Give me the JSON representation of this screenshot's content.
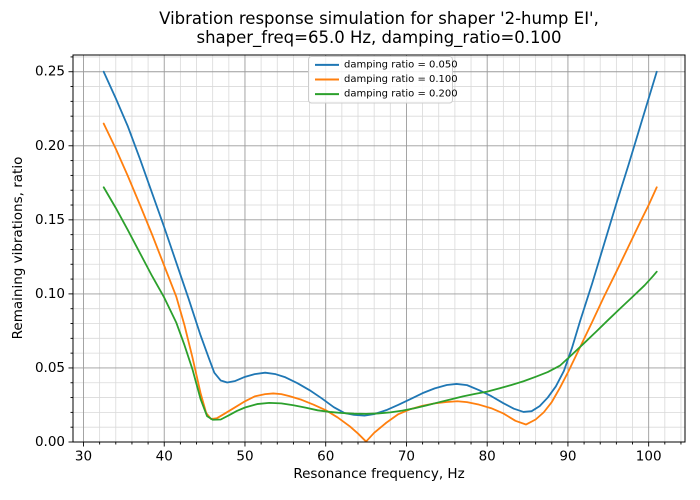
{
  "figure": {
    "title_line1": "Vibration response simulation for shaper '2-hump EI',",
    "title_line2": "shaper_freq=65.0 Hz, damping_ratio=0.100"
  },
  "chart_data": {
    "type": "line",
    "title": "Vibration response simulation for shaper '2-hump EI', shaper_freq=65.0 Hz, damping_ratio=0.100",
    "xlabel": "Resonance frequency, Hz",
    "ylabel": "Remaining vibrations, ratio",
    "xlim": [
      28.7,
      104.5
    ],
    "ylim": [
      0,
      0.2613
    ],
    "x_major_ticks": [
      30,
      40,
      50,
      60,
      70,
      80,
      90,
      100
    ],
    "x_tick_labels": [
      "30",
      "40",
      "50",
      "60",
      "70",
      "80",
      "90",
      "100"
    ],
    "x_minor_step": 2,
    "y_major_ticks": [
      0,
      0.05,
      0.1,
      0.15,
      0.2,
      0.25
    ],
    "y_tick_labels": [
      "0.00",
      "0.05",
      "0.10",
      "0.15",
      "0.20",
      "0.25"
    ],
    "y_minor_step": 0.01,
    "grid": true,
    "legend": {
      "position": "upper center",
      "border_color": "#cccccc",
      "background": "rgba(255,255,255,0.85)"
    },
    "style": {
      "major_grid_color": "#9b9b9b",
      "minor_grid_color": "#d9d9d9",
      "spine_color": "#000000"
    },
    "series": [
      {
        "name": "damping ratio = 0.050",
        "color": "#1f77b4",
        "points": [
          [
            32.5,
            0.25
          ],
          [
            34,
            0.232
          ],
          [
            35.5,
            0.213
          ],
          [
            37,
            0.191
          ],
          [
            38.5,
            0.168
          ],
          [
            40,
            0.145
          ],
          [
            41.5,
            0.121
          ],
          [
            43,
            0.097
          ],
          [
            44.5,
            0.072
          ],
          [
            45.5,
            0.057
          ],
          [
            46.2,
            0.0468
          ],
          [
            47,
            0.0415
          ],
          [
            47.8,
            0.0402
          ],
          [
            48.8,
            0.0412
          ],
          [
            50,
            0.044
          ],
          [
            51.2,
            0.0458
          ],
          [
            52.5,
            0.0468
          ],
          [
            53.8,
            0.0458
          ],
          [
            55,
            0.0437
          ],
          [
            56.5,
            0.0397
          ],
          [
            58,
            0.035
          ],
          [
            59.5,
            0.0295
          ],
          [
            61,
            0.0235
          ],
          [
            62.3,
            0.0196
          ],
          [
            63.5,
            0.0183
          ],
          [
            64.8,
            0.0178
          ],
          [
            66,
            0.0188
          ],
          [
            67.5,
            0.0215
          ],
          [
            69,
            0.0251
          ],
          [
            70.5,
            0.029
          ],
          [
            72,
            0.033
          ],
          [
            73.5,
            0.0362
          ],
          [
            75,
            0.0385
          ],
          [
            76.2,
            0.0392
          ],
          [
            77.5,
            0.0384
          ],
          [
            79,
            0.035
          ],
          [
            80.5,
            0.031
          ],
          [
            82,
            0.0262
          ],
          [
            83.3,
            0.0225
          ],
          [
            84.5,
            0.0203
          ],
          [
            85.5,
            0.0208
          ],
          [
            86.5,
            0.0242
          ],
          [
            87.5,
            0.03
          ],
          [
            88.5,
            0.0375
          ],
          [
            89.5,
            0.048
          ],
          [
            90.5,
            0.0635
          ],
          [
            91.5,
            0.0815
          ],
          [
            93,
            0.107
          ],
          [
            94.5,
            0.134
          ],
          [
            96,
            0.161
          ],
          [
            97.5,
            0.187
          ],
          [
            99,
            0.214
          ],
          [
            100,
            0.232
          ],
          [
            101,
            0.25
          ]
        ]
      },
      {
        "name": "damping ratio = 0.100",
        "color": "#ff7f0e",
        "points": [
          [
            32.5,
            0.215
          ],
          [
            34,
            0.198
          ],
          [
            35.5,
            0.1795
          ],
          [
            37,
            0.16
          ],
          [
            38.5,
            0.14
          ],
          [
            40,
            0.119
          ],
          [
            41.5,
            0.098
          ],
          [
            42.5,
            0.079
          ],
          [
            43.5,
            0.057
          ],
          [
            44.5,
            0.033
          ],
          [
            45.2,
            0.0195
          ],
          [
            45.8,
            0.0155
          ],
          [
            46.5,
            0.016
          ],
          [
            47.5,
            0.0192
          ],
          [
            48.8,
            0.0235
          ],
          [
            50,
            0.0275
          ],
          [
            51.2,
            0.0308
          ],
          [
            52.5,
            0.0323
          ],
          [
            53.5,
            0.0328
          ],
          [
            54.5,
            0.0323
          ],
          [
            55.5,
            0.031
          ],
          [
            57,
            0.0285
          ],
          [
            58.5,
            0.0252
          ],
          [
            60,
            0.0215
          ],
          [
            61.5,
            0.0165
          ],
          [
            63,
            0.0105
          ],
          [
            64,
            0.0057
          ],
          [
            65,
            0.0003
          ],
          [
            66,
            0.0062
          ],
          [
            67.5,
            0.013
          ],
          [
            69,
            0.0188
          ],
          [
            70.5,
            0.0222
          ],
          [
            72,
            0.0245
          ],
          [
            73.5,
            0.0261
          ],
          [
            75,
            0.027
          ],
          [
            76.3,
            0.0275
          ],
          [
            77.5,
            0.0269
          ],
          [
            79,
            0.0252
          ],
          [
            80.5,
            0.0228
          ],
          [
            82,
            0.0193
          ],
          [
            83.5,
            0.0143
          ],
          [
            84.8,
            0.0118
          ],
          [
            86,
            0.0152
          ],
          [
            87,
            0.02
          ],
          [
            88,
            0.027
          ],
          [
            89,
            0.0365
          ],
          [
            90,
            0.047
          ],
          [
            91.5,
            0.064
          ],
          [
            93,
            0.081
          ],
          [
            94.5,
            0.0985
          ],
          [
            96,
            0.115
          ],
          [
            97.5,
            0.132
          ],
          [
            99,
            0.149
          ],
          [
            100,
            0.16
          ],
          [
            101,
            0.172
          ]
        ]
      },
      {
        "name": "damping ratio = 0.200",
        "color": "#2ca02c",
        "points": [
          [
            32.5,
            0.172
          ],
          [
            34,
            0.158
          ],
          [
            35.5,
            0.143
          ],
          [
            37,
            0.1275
          ],
          [
            38.5,
            0.112
          ],
          [
            40,
            0.0975
          ],
          [
            41.5,
            0.0805
          ],
          [
            42.5,
            0.0655
          ],
          [
            43.5,
            0.049
          ],
          [
            44.5,
            0.029
          ],
          [
            45.3,
            0.0175
          ],
          [
            46,
            0.015
          ],
          [
            47,
            0.0152
          ],
          [
            48,
            0.018
          ],
          [
            49,
            0.021
          ],
          [
            50,
            0.0233
          ],
          [
            51.5,
            0.0256
          ],
          [
            53,
            0.0264
          ],
          [
            54.5,
            0.0261
          ],
          [
            56,
            0.0248
          ],
          [
            57.5,
            0.0232
          ],
          [
            59,
            0.0214
          ],
          [
            60.5,
            0.0203
          ],
          [
            62,
            0.0196
          ],
          [
            63.5,
            0.0191
          ],
          [
            65,
            0.019
          ],
          [
            66.5,
            0.0193
          ],
          [
            68,
            0.02
          ],
          [
            69.5,
            0.0212
          ],
          [
            71,
            0.0228
          ],
          [
            72.5,
            0.0247
          ],
          [
            74,
            0.0268
          ],
          [
            75.5,
            0.0288
          ],
          [
            77,
            0.0308
          ],
          [
            78.5,
            0.0325
          ],
          [
            80,
            0.034
          ],
          [
            81.5,
            0.0362
          ],
          [
            83,
            0.0385
          ],
          [
            84.5,
            0.041
          ],
          [
            86,
            0.044
          ],
          [
            87.5,
            0.0472
          ],
          [
            89,
            0.0515
          ],
          [
            90.5,
            0.059
          ],
          [
            92,
            0.0667
          ],
          [
            93.5,
            0.0745
          ],
          [
            95,
            0.0825
          ],
          [
            96.5,
            0.0903
          ],
          [
            98,
            0.098
          ],
          [
            99.5,
            0.1058
          ],
          [
            100.5,
            0.1118
          ],
          [
            101,
            0.115
          ]
        ]
      }
    ]
  }
}
